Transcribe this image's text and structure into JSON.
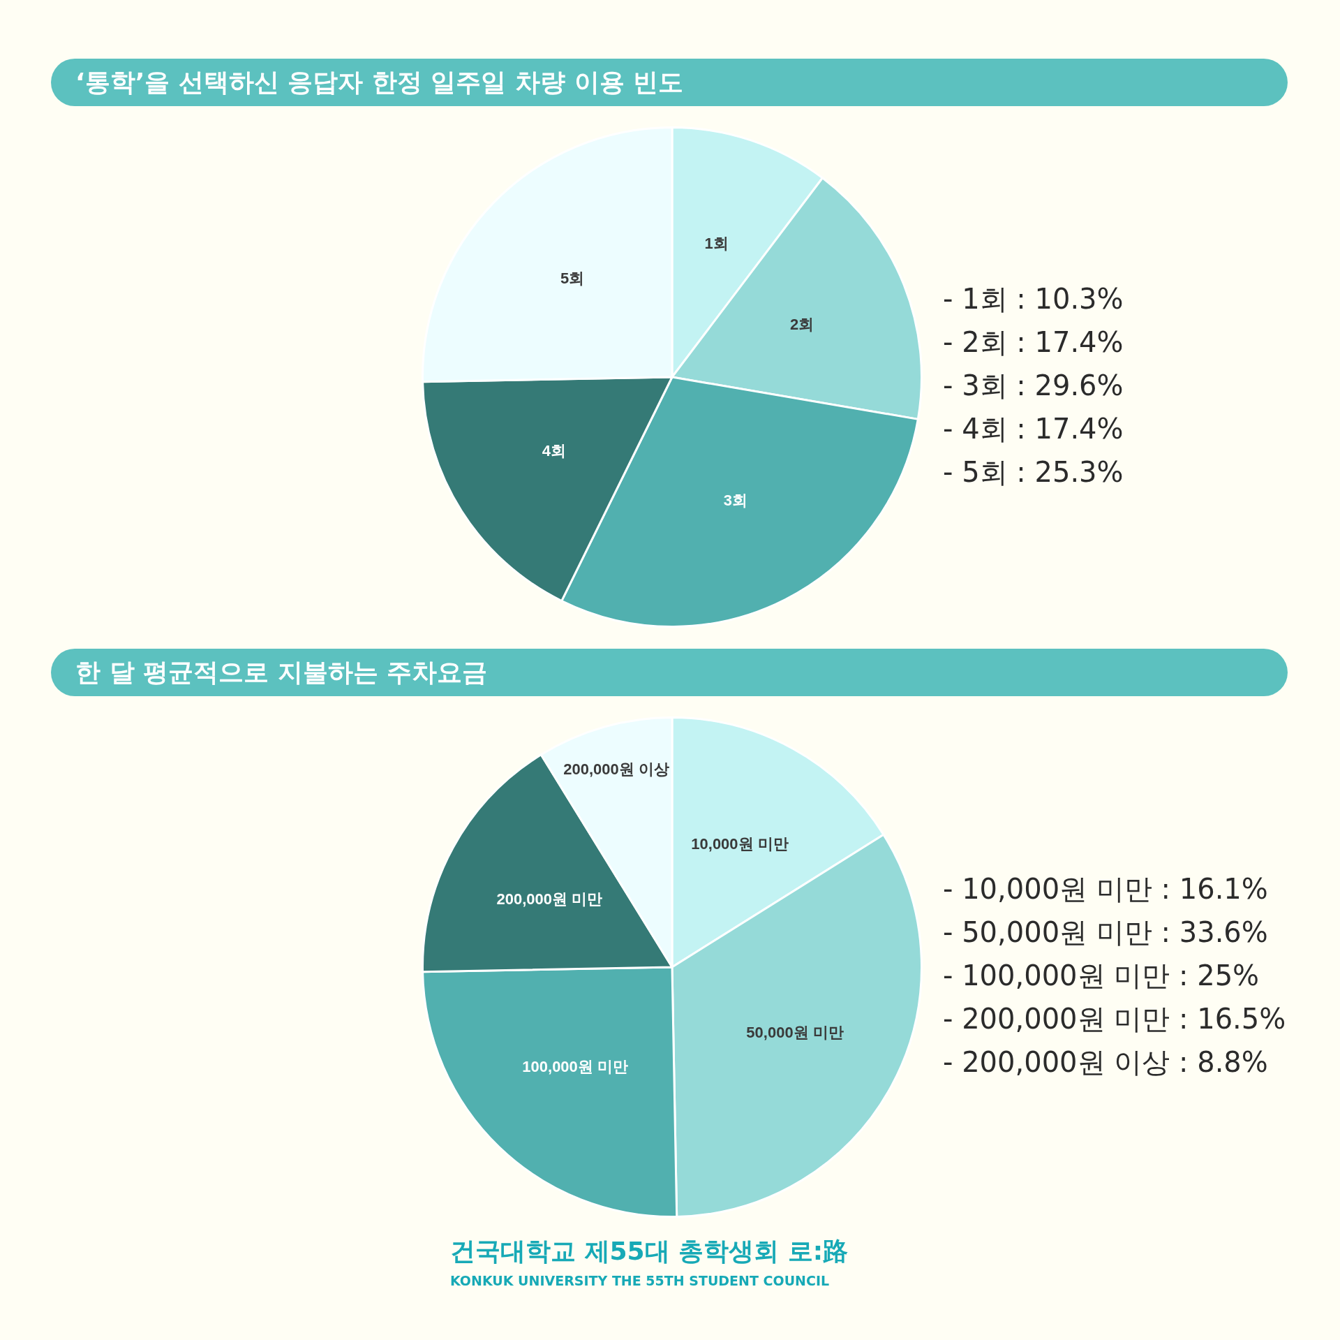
{
  "chart_data": [
    {
      "type": "pie",
      "title": "‘통학’을 선택하신 응답자 한정 일주일 차량 이용 빈도",
      "categories": [
        "1회",
        "2회",
        "3회",
        "4회",
        "5회"
      ],
      "values": [
        10.3,
        17.4,
        29.6,
        17.4,
        25.3
      ],
      "colors": [
        "#c3f3f3",
        "#95dad8",
        "#51b0af",
        "#357a76",
        "#edfdff"
      ],
      "annotations": [
        "- 1회 : 10.3%",
        "- 2회 : 17.4%",
        "- 3회 : 29.6%",
        "- 4회 : 17.4%",
        "- 5회 : 25.3%"
      ]
    },
    {
      "type": "pie",
      "title": "한 달 평균적으로 지불하는 주차요금",
      "categories": [
        "10,000원 미만",
        "50,000원 미만",
        "100,000원 미만",
        "200,000원 미만",
        "200,000원 이상"
      ],
      "values": [
        16.1,
        33.6,
        25,
        16.5,
        8.8
      ],
      "colors": [
        "#c3f3f3",
        "#95dad8",
        "#51b0af",
        "#357a76",
        "#edfdff"
      ],
      "annotations": [
        "- 10,000원 미만 : 16.1%",
        "- 50,000원 미만 : 33.6%",
        "- 100,000원 미만 : 25%",
        "- 200,000원 미만 : 16.5%",
        "- 200,000원 이상 : 8.8%"
      ]
    },
    {
      "type": "other",
      "annotations": [
        "건국대학교 제55대 총학생회 로:路",
        "KONKUK UNIVERSITY THE 55TH STUDENT COUNCIL"
      ]
    }
  ]
}
